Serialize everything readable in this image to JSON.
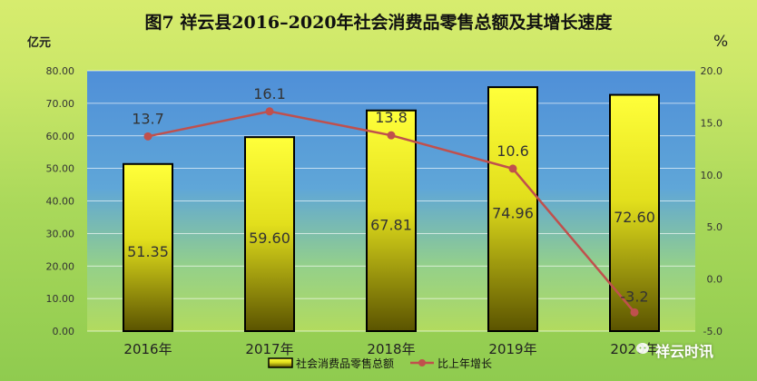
{
  "chart_data": {
    "type": "bar+line",
    "title": "图7  祥云县2016–2020年社会消费品零售总额及其增长速度",
    "categories": [
      "2016年",
      "2017年",
      "2018年",
      "2019年",
      "2020年"
    ],
    "series": [
      {
        "name": "社会消费品零售总额",
        "type": "bar",
        "axis": "left",
        "values": [
          51.35,
          59.6,
          67.81,
          74.96,
          72.6
        ],
        "labels": [
          "51.35",
          "59.60",
          "67.81",
          "74.96",
          "72.60"
        ]
      },
      {
        "name": "比上年增长",
        "type": "line",
        "axis": "right",
        "values": [
          13.7,
          16.1,
          13.8,
          10.6,
          -3.2
        ],
        "labels": [
          "13.7",
          "16.1",
          "13.8",
          "10.6",
          "-3.2"
        ]
      }
    ],
    "left_axis": {
      "unit": "亿元",
      "ylim": [
        0,
        80
      ],
      "ticks": [
        "0.00",
        "10.00",
        "20.00",
        "30.00",
        "40.00",
        "50.00",
        "60.00",
        "70.00",
        "80.00"
      ]
    },
    "right_axis": {
      "unit": "%",
      "ylim": [
        -5,
        20
      ],
      "ticks": [
        "-5.0",
        "0.0",
        "5.0",
        "10.0",
        "15.0",
        "20.0"
      ]
    },
    "legend_position": "bottom",
    "grid": true,
    "colors": {
      "bar_fill_top": "#ffff3a",
      "bar_fill_bottom": "#5a5300",
      "bar_stroke": "#000000",
      "line": "#c0504d",
      "plot_bg_top": "#4f8fd8",
      "plot_bg_bottom": "#b2db5e",
      "gridline": "#ffffff",
      "label_text": "#333333"
    }
  },
  "watermark": "祥云时讯"
}
